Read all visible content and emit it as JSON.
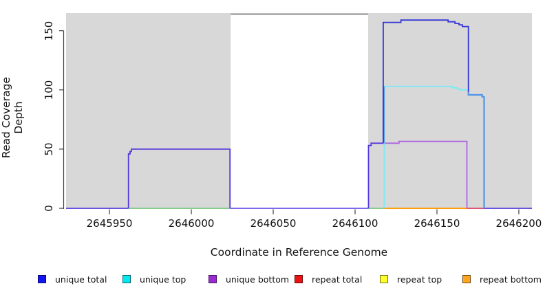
{
  "chart_data": {
    "type": "line",
    "subtype": "step-coverage",
    "title": "",
    "xlabel": "Coordinate in Reference Genome",
    "ylabel": "Read Coverage Depth",
    "xlim": [
      2645923.5,
      2646208
    ],
    "ylim": [
      0,
      164.9
    ],
    "xticks": [
      2645950,
      2646000,
      2646050,
      2646100,
      2646150,
      2646200
    ],
    "yticks": [
      0,
      50,
      100,
      150
    ],
    "grid": false,
    "legend_position": "bottom",
    "masked_regions": [
      {
        "name": "shaded-left",
        "x0": 2645923.5,
        "x1": 2646024,
        "color": "#d8d8d8"
      },
      {
        "name": "shaded-right",
        "x0": 2646108,
        "x1": 2646208,
        "color": "#d8d8d8"
      }
    ],
    "series": [
      {
        "name": "unique total",
        "color": "#0000f0",
        "points": [
          [
            2645924,
            0
          ],
          [
            2645962,
            0
          ],
          [
            2645962,
            50
          ],
          [
            2646024,
            50
          ],
          [
            2646024,
            0
          ],
          [
            2646108,
            0
          ],
          [
            2646108,
            55
          ],
          [
            2646117,
            55
          ],
          [
            2646117,
            157
          ],
          [
            2646128,
            159
          ],
          [
            2646157,
            159
          ],
          [
            2646158,
            157.5
          ],
          [
            2646162,
            156
          ],
          [
            2646165,
            155
          ],
          [
            2646167,
            153.5
          ],
          [
            2646170,
            153.5
          ],
          [
            2646170,
            96
          ],
          [
            2646179,
            96
          ],
          [
            2646179,
            0
          ],
          [
            2646208,
            0
          ]
        ]
      },
      {
        "name": "unique top",
        "color": "#00e6f0",
        "points": [
          [
            2645924,
            0
          ],
          [
            2646117,
            0
          ],
          [
            2646117,
            103
          ],
          [
            2646160,
            103
          ],
          [
            2646162,
            101.8
          ],
          [
            2646164,
            100.8
          ],
          [
            2646166,
            100
          ],
          [
            2646169,
            100
          ],
          [
            2646169,
            96
          ],
          [
            2646179,
            96
          ],
          [
            2646179,
            0
          ],
          [
            2646208,
            0
          ]
        ]
      },
      {
        "name": "unique bottom",
        "color": "#9c2bd6",
        "points": [
          [
            2645924,
            0
          ],
          [
            2645962,
            0
          ],
          [
            2645962,
            50
          ],
          [
            2646024,
            50
          ],
          [
            2646024,
            0
          ],
          [
            2646108,
            0
          ],
          [
            2646108,
            53
          ],
          [
            2646112,
            55
          ],
          [
            2646127,
            55
          ],
          [
            2646128,
            56.5
          ],
          [
            2646168,
            56.5
          ],
          [
            2646168,
            0
          ],
          [
            2646208,
            0
          ]
        ]
      },
      {
        "name": "repeat total",
        "color": "#ee1111",
        "points": [
          [
            2645924,
            0
          ],
          [
            2646208,
            0
          ]
        ]
      },
      {
        "name": "repeat top",
        "color": "#ffff2e",
        "points": [
          [
            2645924,
            0
          ],
          [
            2646208,
            0
          ]
        ]
      },
      {
        "name": "repeat bottom",
        "color": "#ffa51e",
        "points": [
          [
            2645924,
            0
          ],
          [
            2646208,
            0
          ]
        ]
      }
    ],
    "render": {
      "top_clipped_line": {
        "x0": 2646024,
        "x1": 2646108,
        "value": 164,
        "color": "#8a8a8a",
        "width": 2
      },
      "baseline_segments": [
        {
          "x0": 2645923.5,
          "x1": 2645961.6,
          "color": "#6c52e2"
        },
        {
          "x0": 2645961.6,
          "x1": 2646023.6,
          "color": "#85cc8a"
        },
        {
          "x0": 2646023.6,
          "x1": 2646108.2,
          "color": "#7e6ae8"
        },
        {
          "x0": 2646108.2,
          "x1": 2646117.8,
          "color": "#85cc8a"
        },
        {
          "x0": 2646117.8,
          "x1": 2646168.3,
          "color": "#ff9d0d"
        },
        {
          "x0": 2646168.3,
          "x1": 2646178.8,
          "color": "#e25575"
        },
        {
          "x0": 2646178.8,
          "x1": 2646208.0,
          "color": "#6c52e2"
        }
      ],
      "polylines": [
        {
          "name": "unique-box-left",
          "color": "#5637dc",
          "width": 1.8,
          "pts": [
            [
              2645961.6,
              0
            ],
            [
              2645961.6,
              46
            ],
            [
              2645962.6,
              46
            ],
            [
              2645962.6,
              48
            ],
            [
              2645963.4,
              48
            ],
            [
              2645963.4,
              50
            ],
            [
              2646023.6,
              50
            ],
            [
              2646023.6,
              0
            ]
          ]
        },
        {
          "name": "unique-rise-right",
          "color": "#5637dc",
          "width": 1.8,
          "pts": [
            [
              2646108.2,
              0
            ],
            [
              2646108.2,
              53
            ],
            [
              2646109.8,
              53
            ],
            [
              2646109.8,
              55
            ],
            [
              2646117.2,
              55
            ]
          ]
        },
        {
          "name": "unique-bottom-line",
          "color": "#ad64e0",
          "width": 1.8,
          "pts": [
            [
              2646117.2,
              55
            ],
            [
              2646126.8,
              55
            ],
            [
              2646126.8,
              56.5
            ],
            [
              2646168.3,
              56.5
            ],
            [
              2646168.3,
              0
            ]
          ]
        },
        {
          "name": "unique-top-line",
          "color": "#7de9f5",
          "width": 1.8,
          "pts": [
            [
              2646117.8,
              0
            ],
            [
              2646117.8,
              103
            ],
            [
              2646159.5,
              103
            ],
            [
              2646159.5,
              101.8
            ],
            [
              2646162.3,
              101.8
            ],
            [
              2646162.3,
              100.8
            ],
            [
              2646164.2,
              100.8
            ],
            [
              2646164.2,
              100
            ],
            [
              2646169.2,
              100
            ]
          ]
        },
        {
          "name": "unique-top-vertical-overlap",
          "color": "#4a86e8",
          "width": 1.8,
          "pts": [
            [
              2646117.6,
              55
            ],
            [
              2646117.6,
              103
            ]
          ]
        },
        {
          "name": "unique-total-peak",
          "color": "#3434d8",
          "width": 1.8,
          "pts": [
            [
              2646117.2,
              55
            ],
            [
              2646117.2,
              157
            ],
            [
              2646128,
              157
            ],
            [
              2646128,
              159
            ],
            [
              2646156.8,
              159
            ],
            [
              2646156.8,
              157.5
            ],
            [
              2646161,
              157.5
            ],
            [
              2646161,
              156.2
            ],
            [
              2646163.5,
              156.2
            ],
            [
              2646163.5,
              155
            ],
            [
              2646165.5,
              155
            ],
            [
              2646165.5,
              153.5
            ],
            [
              2646169.2,
              153.5
            ],
            [
              2646169.2,
              98
            ]
          ]
        },
        {
          "name": "merged-tail",
          "color": "#4f94ea",
          "width": 2.2,
          "pts": [
            [
              2646169.2,
              98
            ],
            [
              2646169.2,
              95.8
            ],
            [
              2646177.6,
              95.8
            ],
            [
              2646177.6,
              94.2
            ],
            [
              2646178.8,
              94.2
            ],
            [
              2646178.8,
              0
            ]
          ]
        }
      ]
    }
  },
  "legend": {
    "items": [
      {
        "label": "unique total",
        "color": "#1414f0"
      },
      {
        "label": "unique top",
        "color": "#00e8f0"
      },
      {
        "label": "unique bottom",
        "color": "#9c2bd6"
      },
      {
        "label": "repeat total",
        "color": "#ee1111"
      },
      {
        "label": "repeat top",
        "color": "#ffff2e"
      },
      {
        "label": "repeat bottom",
        "color": "#ffa51e"
      }
    ]
  }
}
